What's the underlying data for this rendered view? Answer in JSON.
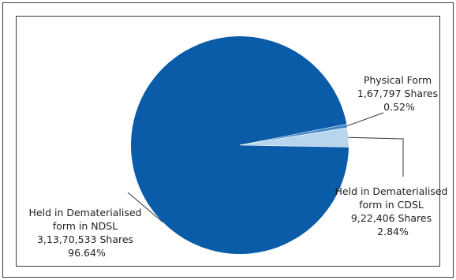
{
  "chart_data": {
    "type": "pie",
    "slices": [
      {
        "label_lines": [
          "Held in Dematerialised",
          "form in NDSL",
          "3,13,70,533 Shares",
          "96.64%"
        ],
        "shares": 31370533,
        "percent": 96.64,
        "color": "#0a5ba8"
      },
      {
        "label_lines": [
          "Physical Form",
          "1,67,797 Shares",
          "0.52%"
        ],
        "shares": 167797,
        "percent": 0.52,
        "color": "#3f85c4"
      },
      {
        "label_lines": [
          "Held in Dematerialised",
          "form in CDSL",
          "9,22,406 Shares",
          "2.84%"
        ],
        "shares": 922406,
        "percent": 2.84,
        "color": "#b7d6ee"
      }
    ],
    "colors": {
      "border": "#3a3a3a",
      "leader": "#333333",
      "background": "#ffffff"
    }
  }
}
